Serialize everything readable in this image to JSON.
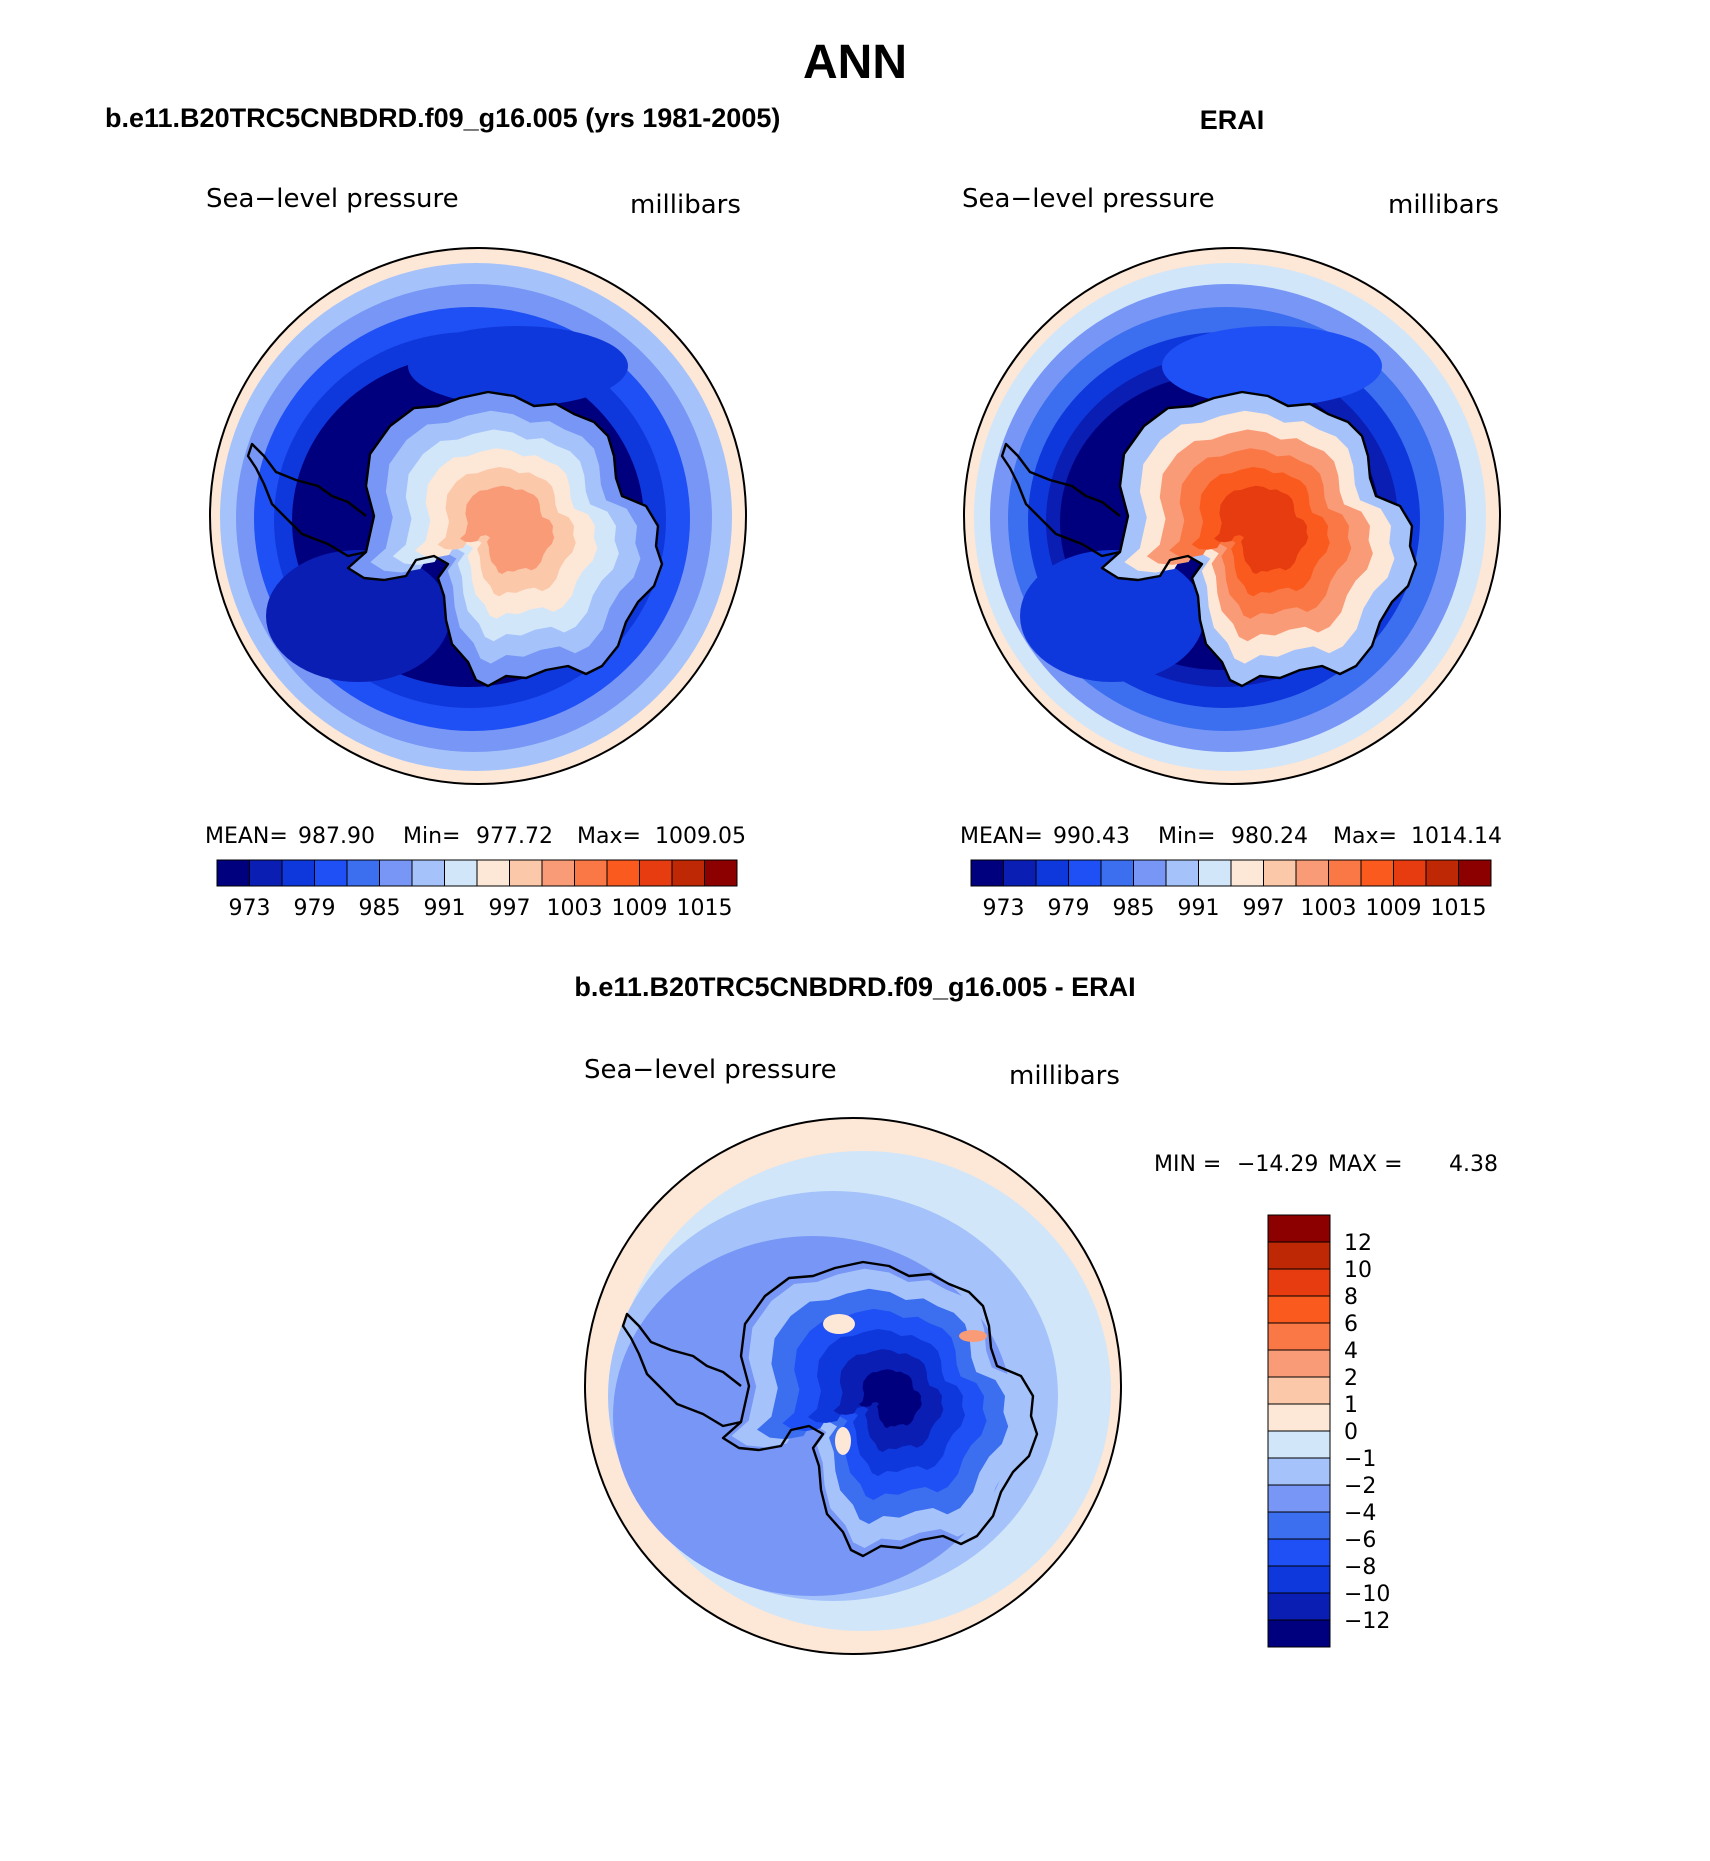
{
  "title": "ANN",
  "palette": {
    "blues": [
      "#00007f",
      "#0a1eb4",
      "#0f38dc",
      "#1e50f5",
      "#3c6ef0",
      "#7896f5",
      "#a5c3fa",
      "#d2e6fa"
    ],
    "reds": [
      "#fde7d6",
      "#fbc8aa",
      "#fa9b78",
      "#fa7846",
      "#fa5a1e",
      "#e63c0f",
      "#be2805",
      "#8c0000"
    ]
  },
  "panels": [
    {
      "id": "model",
      "title": "b.e11.B20TRC5CNBDRD.f09_g16.005 (yrs 1981-2005)",
      "left_label": "Sea−level pressure",
      "right_label": "millibars",
      "stats": {
        "mean_label": "MEAN=",
        "mean": "987.90",
        "min_label": "Min=",
        "min": "977.72",
        "max_label": "Max=",
        "max": "1009.05"
      },
      "fields": {
        "rings": [
          0,
          1,
          1,
          2,
          2,
          3,
          3,
          3
        ],
        "continent": [
          5,
          6,
          7,
          8,
          9,
          10
        ],
        "lows": [
          1,
          1
        ],
        "blob": "model"
      }
    },
    {
      "id": "obs",
      "title": "ERAI",
      "left_label": "Sea−level pressure",
      "right_label": "millibars",
      "stats": {
        "mean_label": "MEAN=",
        "mean": "990.43",
        "min_label": "Min=",
        "min": "980.24",
        "max_label": "Max=",
        "max": "1014.14"
      },
      "fields": {
        "rings": [
          0,
          0,
          1,
          1,
          2,
          2,
          3,
          3
        ],
        "continent": [
          6,
          8,
          10,
          11,
          12,
          13
        ],
        "lows": [
          2,
          2
        ],
        "blob": "obs"
      }
    }
  ],
  "colorbar_horizontal": {
    "ticks": [
      "973",
      "979",
      "985",
      "991",
      "997",
      "1003",
      "1009",
      "1015"
    ]
  },
  "difference": {
    "title": "b.e11.B20TRC5CNBDRD.f09_g16.005 - ERAI",
    "left_label": "Sea−level pressure",
    "right_label": "millibars",
    "stats": {
      "min_label": "MIN =",
      "min": "−14.29",
      "max_label": "MAX =",
      "max": "4.38"
    },
    "colorbar_vertical": {
      "ticks": [
        "12",
        "10",
        "8",
        "6",
        "4",
        "2",
        "1",
        "0",
        "−1",
        "−2",
        "−4",
        "−6",
        "−8",
        "−10",
        "−12"
      ]
    }
  },
  "chart_data": {
    "type": "heatmap",
    "title": "ANN",
    "variable": "Sea−level pressure",
    "units": "millibars",
    "panels": [
      {
        "name": "b.e11.B20TRC5CNBDRD.f09_g16.005 (yrs 1981-2005)",
        "mean": 987.9,
        "min": 977.72,
        "max": 1009.05,
        "levels": [
          973,
          976,
          979,
          982,
          985,
          988,
          991,
          994,
          997,
          1000,
          1003,
          1006,
          1009,
          1012,
          1015
        ]
      },
      {
        "name": "ERAI",
        "mean": 990.43,
        "min": 980.24,
        "max": 1014.14,
        "levels": [
          973,
          976,
          979,
          982,
          985,
          988,
          991,
          994,
          997,
          1000,
          1003,
          1006,
          1009,
          1012,
          1015
        ]
      },
      {
        "name": "b.e11.B20TRC5CNBDRD.f09_g16.005 - ERAI",
        "min": -14.29,
        "max": 4.38,
        "levels": [
          -12,
          -10,
          -8,
          -6,
          -4,
          -2,
          -1,
          0,
          1,
          2,
          4,
          6,
          8,
          10,
          12
        ]
      }
    ]
  }
}
